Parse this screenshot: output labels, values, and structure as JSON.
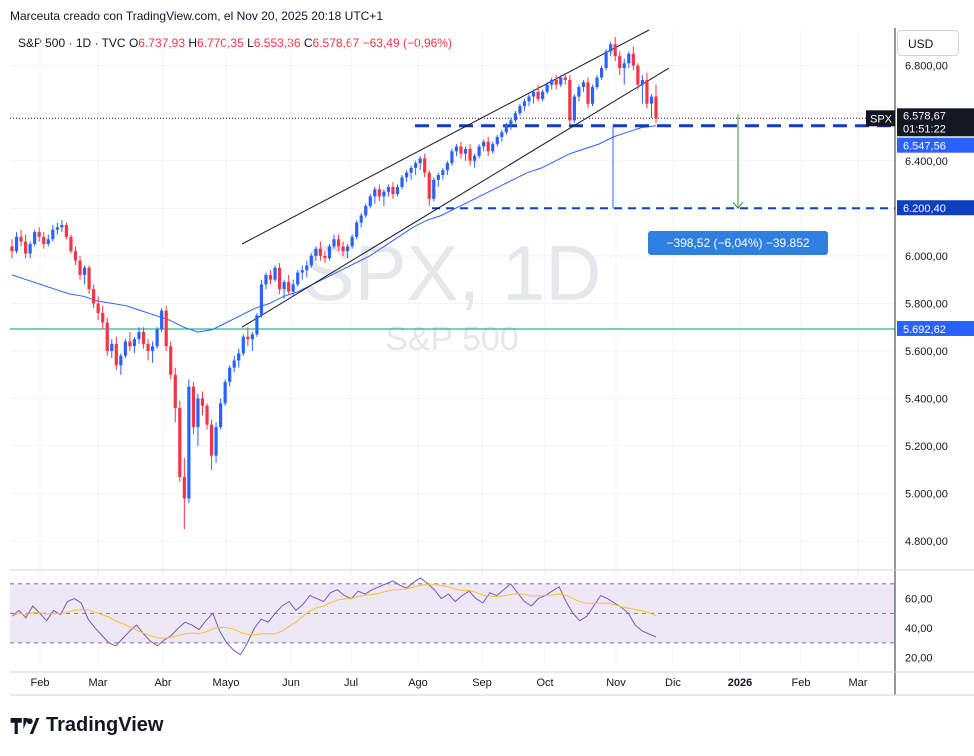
{
  "header": {
    "attribution": "Marceuta creado con TradingView.com, el Nov 20, 2025 20:18 UTC+1"
  },
  "legend": {
    "symbol": "S&P 500 · 1D · TVC",
    "open_label": "O",
    "open": "6.737,93",
    "high_label": "H",
    "high": "6.770,35",
    "low_label": "L",
    "low": "6.553,36",
    "close_label": "C",
    "close": "6.578,67",
    "change": "−63,49 (−0,96%)"
  },
  "currency": "USD",
  "watermark": {
    "ticker": "SPX, 1D",
    "name": "S&P 500"
  },
  "price_axis": {
    "ticks": [
      "6.800,00",
      "6.600,00",
      "6.400,00",
      "6.200,00",
      "6.000,00",
      "5.800,00",
      "5.600,00",
      "5.400,00",
      "5.200,00",
      "5.000,00",
      "4.800,00"
    ]
  },
  "tags": {
    "symbol": "SPX",
    "last_price": "6.578,67",
    "countdown": "01:51:22",
    "ma_value": "6.547,56",
    "target": "6.200,40",
    "hline": "5.692,62"
  },
  "measure": {
    "label": "−398,52 (−6,04%) −39.852"
  },
  "rsi_axis": {
    "ticks": [
      "60,00",
      "40,00",
      "20,00"
    ]
  },
  "time_axis": {
    "labels": [
      "Feb",
      "Mar",
      "Abr",
      "Mayo",
      "Jun",
      "Jul",
      "Ago",
      "Sep",
      "Oct",
      "Nov",
      "Dic",
      "2026",
      "Feb",
      "Mar"
    ]
  },
  "footer": {
    "brand": "TradingView"
  },
  "colors": {
    "up": "#2962ff",
    "down": "#f23645",
    "ma": "#2962ff",
    "rsi": "#7e57c2",
    "rsi_ma": "#fbc02d",
    "rsi_band": "#ede7f6",
    "hline": "#089981"
  },
  "chart_data": {
    "type": "candlestick",
    "title": "S&P 500 · 1D · TVC",
    "y_range": [
      4700,
      6950
    ],
    "x_labels": [
      "Feb",
      "Mar",
      "Abr",
      "Mayo",
      "Jun",
      "Jul",
      "Ago",
      "Sep",
      "Oct",
      "Nov",
      "Dic",
      "2026",
      "Feb",
      "Mar"
    ],
    "series": [
      {
        "name": "S&P 500",
        "values": [
          [
            6040,
            6070,
            5990,
            6020
          ],
          [
            6020,
            6100,
            6010,
            6080
          ],
          [
            6080,
            6110,
            6040,
            6060
          ],
          [
            6060,
            6090,
            5990,
            6010
          ],
          [
            6010,
            6060,
            5990,
            6050
          ],
          [
            6050,
            6110,
            6040,
            6100
          ],
          [
            6100,
            6120,
            6060,
            6080
          ],
          [
            6080,
            6100,
            6030,
            6050
          ],
          [
            6050,
            6090,
            6040,
            6070
          ],
          [
            6070,
            6130,
            6060,
            6110
          ],
          [
            6110,
            6140,
            6090,
            6120
          ],
          [
            6120,
            6150,
            6100,
            6130
          ],
          [
            6130,
            6140,
            6070,
            6080
          ],
          [
            6080,
            6090,
            6010,
            6020
          ],
          [
            6020,
            6040,
            5960,
            5980
          ],
          [
            5980,
            6000,
            5900,
            5920
          ],
          [
            5920,
            5960,
            5880,
            5950
          ],
          [
            5950,
            5960,
            5840,
            5860
          ],
          [
            5860,
            5880,
            5780,
            5800
          ],
          [
            5800,
            5830,
            5730,
            5760
          ],
          [
            5760,
            5790,
            5690,
            5720
          ],
          [
            5720,
            5740,
            5580,
            5600
          ],
          [
            5600,
            5650,
            5570,
            5630
          ],
          [
            5630,
            5660,
            5520,
            5540
          ],
          [
            5540,
            5590,
            5500,
            5580
          ],
          [
            5580,
            5650,
            5570,
            5640
          ],
          [
            5640,
            5680,
            5600,
            5620
          ],
          [
            5620,
            5660,
            5590,
            5650
          ],
          [
            5650,
            5700,
            5630,
            5680
          ],
          [
            5680,
            5700,
            5610,
            5630
          ],
          [
            5630,
            5650,
            5560,
            5600
          ],
          [
            5600,
            5640,
            5550,
            5620
          ],
          [
            5620,
            5700,
            5610,
            5690
          ],
          [
            5690,
            5780,
            5680,
            5770
          ],
          [
            5770,
            5790,
            5600,
            5620
          ],
          [
            5620,
            5640,
            5480,
            5500
          ],
          [
            5500,
            5530,
            5300,
            5360
          ],
          [
            5360,
            5390,
            5050,
            5070
          ],
          [
            5070,
            5150,
            4850,
            4980
          ],
          [
            4980,
            5480,
            4960,
            5450
          ],
          [
            5450,
            5470,
            5250,
            5280
          ],
          [
            5280,
            5420,
            5200,
            5400
          ],
          [
            5400,
            5430,
            5330,
            5370
          ],
          [
            5370,
            5380,
            5270,
            5290
          ],
          [
            5290,
            5310,
            5100,
            5160
          ],
          [
            5160,
            5300,
            5130,
            5280
          ],
          [
            5280,
            5400,
            5270,
            5380
          ],
          [
            5380,
            5480,
            5370,
            5470
          ],
          [
            5470,
            5540,
            5450,
            5530
          ],
          [
            5530,
            5580,
            5510,
            5560
          ],
          [
            5560,
            5610,
            5530,
            5590
          ],
          [
            5590,
            5670,
            5580,
            5660
          ],
          [
            5660,
            5700,
            5620,
            5650
          ],
          [
            5650,
            5680,
            5600,
            5670
          ],
          [
            5670,
            5760,
            5660,
            5750
          ],
          [
            5750,
            5900,
            5740,
            5880
          ],
          [
            5880,
            5930,
            5860,
            5920
          ],
          [
            5920,
            5940,
            5880,
            5900
          ],
          [
            5900,
            5960,
            5890,
            5950
          ],
          [
            5950,
            5970,
            5840,
            5860
          ],
          [
            5860,
            5900,
            5820,
            5890
          ],
          [
            5890,
            5920,
            5840,
            5850
          ],
          [
            5850,
            5900,
            5830,
            5880
          ],
          [
            5880,
            5940,
            5870,
            5930
          ],
          [
            5930,
            5960,
            5900,
            5940
          ],
          [
            5940,
            5980,
            5910,
            5960
          ],
          [
            5960,
            6010,
            5950,
            6000
          ],
          [
            6000,
            6040,
            5980,
            6030
          ],
          [
            6030,
            6060,
            5980,
            6000
          ],
          [
            6000,
            6020,
            5970,
            5990
          ],
          [
            5990,
            6050,
            5980,
            6040
          ],
          [
            6040,
            6090,
            6030,
            6070
          ],
          [
            6070,
            6090,
            6020,
            6040
          ],
          [
            6040,
            6060,
            6000,
            6020
          ],
          [
            6020,
            6050,
            5990,
            6040
          ],
          [
            6040,
            6090,
            6030,
            6080
          ],
          [
            6080,
            6150,
            6070,
            6140
          ],
          [
            6140,
            6180,
            6120,
            6170
          ],
          [
            6170,
            6220,
            6160,
            6210
          ],
          [
            6210,
            6260,
            6200,
            6250
          ],
          [
            6250,
            6290,
            6220,
            6280
          ],
          [
            6280,
            6300,
            6230,
            6250
          ],
          [
            6250,
            6280,
            6210,
            6270
          ],
          [
            6270,
            6300,
            6250,
            6290
          ],
          [
            6290,
            6310,
            6240,
            6260
          ],
          [
            6260,
            6300,
            6250,
            6290
          ],
          [
            6290,
            6340,
            6280,
            6330
          ],
          [
            6330,
            6360,
            6310,
            6350
          ],
          [
            6350,
            6380,
            6320,
            6370
          ],
          [
            6370,
            6400,
            6340,
            6390
          ],
          [
            6390,
            6420,
            6360,
            6410
          ],
          [
            6410,
            6430,
            6330,
            6350
          ],
          [
            6350,
            6360,
            6210,
            6240
          ],
          [
            6240,
            6330,
            6230,
            6320
          ],
          [
            6320,
            6350,
            6290,
            6340
          ],
          [
            6340,
            6370,
            6320,
            6360
          ],
          [
            6360,
            6400,
            6340,
            6390
          ],
          [
            6390,
            6450,
            6380,
            6440
          ],
          [
            6440,
            6470,
            6420,
            6460
          ],
          [
            6460,
            6480,
            6410,
            6430
          ],
          [
            6430,
            6460,
            6400,
            6450
          ],
          [
            6450,
            6470,
            6380,
            6400
          ],
          [
            6400,
            6430,
            6370,
            6420
          ],
          [
            6420,
            6470,
            6410,
            6460
          ],
          [
            6460,
            6490,
            6440,
            6480
          ],
          [
            6480,
            6500,
            6420,
            6440
          ],
          [
            6440,
            6480,
            6430,
            6470
          ],
          [
            6470,
            6510,
            6460,
            6500
          ],
          [
            6500,
            6530,
            6480,
            6520
          ],
          [
            6520,
            6560,
            6510,
            6550
          ],
          [
            6550,
            6580,
            6530,
            6570
          ],
          [
            6570,
            6610,
            6560,
            6600
          ],
          [
            6600,
            6640,
            6590,
            6630
          ],
          [
            6630,
            6660,
            6610,
            6650
          ],
          [
            6650,
            6680,
            6630,
            6670
          ],
          [
            6670,
            6700,
            6640,
            6690
          ],
          [
            6690,
            6720,
            6650,
            6660
          ],
          [
            6660,
            6700,
            6650,
            6690
          ],
          [
            6690,
            6730,
            6680,
            6720
          ],
          [
            6720,
            6750,
            6700,
            6740
          ],
          [
            6740,
            6760,
            6700,
            6720
          ],
          [
            6720,
            6760,
            6710,
            6750
          ],
          [
            6750,
            6770,
            6720,
            6740
          ],
          [
            6740,
            6760,
            6550,
            6570
          ],
          [
            6570,
            6680,
            6560,
            6670
          ],
          [
            6670,
            6720,
            6650,
            6710
          ],
          [
            6710,
            6740,
            6690,
            6730
          ],
          [
            6730,
            6750,
            6620,
            6640
          ],
          [
            6640,
            6720,
            6630,
            6710
          ],
          [
            6710,
            6760,
            6700,
            6750
          ],
          [
            6750,
            6800,
            6740,
            6790
          ],
          [
            6790,
            6870,
            6780,
            6860
          ],
          [
            6860,
            6900,
            6840,
            6890
          ],
          [
            6890,
            6920,
            6820,
            6840
          ],
          [
            6840,
            6860,
            6760,
            6790
          ],
          [
            6790,
            6830,
            6720,
            6810
          ],
          [
            6810,
            6860,
            6790,
            6850
          ],
          [
            6850,
            6880,
            6780,
            6800
          ],
          [
            6800,
            6810,
            6700,
            6720
          ],
          [
            6720,
            6760,
            6640,
            6740
          ],
          [
            6740,
            6770,
            6620,
            6640
          ],
          [
            6640,
            6680,
            6580,
            6670
          ],
          [
            6670,
            6720,
            6560,
            6578
          ]
        ]
      },
      {
        "name": "MA",
        "values": [
          5920,
          5900,
          5880,
          5860,
          5840,
          5830,
          5810,
          5800,
          5790,
          5770,
          5750,
          5730,
          5700,
          5680,
          5690,
          5720,
          5750,
          5780,
          5800,
          5830,
          5850,
          5880,
          5910,
          5940,
          5970,
          6000,
          6040,
          6080,
          6120,
          6150,
          6170,
          6200,
          6230,
          6260,
          6290,
          6320,
          6350,
          6370,
          6400,
          6430,
          6450,
          6470,
          6500,
          6520,
          6540,
          6547
        ]
      }
    ],
    "annotations": {
      "last_price": 6578.67,
      "ma_value": 6547.56,
      "target": 6200.4,
      "hline": 5692.62,
      "measure_change": "−398,52 (−6,04%) −39.852"
    },
    "rsi": {
      "y_range": [
        15,
        78
      ],
      "levels": [
        30,
        50,
        70
      ],
      "ticks": [
        60,
        40,
        20
      ],
      "values": [
        48,
        52,
        47,
        55,
        50,
        45,
        52,
        49,
        58,
        60,
        57,
        46,
        40,
        35,
        30,
        28,
        33,
        38,
        42,
        36,
        31,
        28,
        32,
        35,
        40,
        44,
        42,
        39,
        45,
        50,
        38,
        30,
        25,
        22,
        30,
        40,
        46,
        44,
        50,
        55,
        58,
        52,
        56,
        62,
        60,
        58,
        64,
        66,
        62,
        60,
        65,
        63,
        66,
        68,
        70,
        72,
        69,
        67,
        71,
        74,
        70,
        66,
        60,
        63,
        58,
        62,
        65,
        60,
        57,
        64,
        62,
        66,
        70,
        64,
        58,
        55,
        60,
        62,
        65,
        68,
        58,
        50,
        45,
        48,
        55,
        62,
        60,
        57,
        54,
        50,
        42,
        38,
        36,
        34
      ]
    }
  }
}
